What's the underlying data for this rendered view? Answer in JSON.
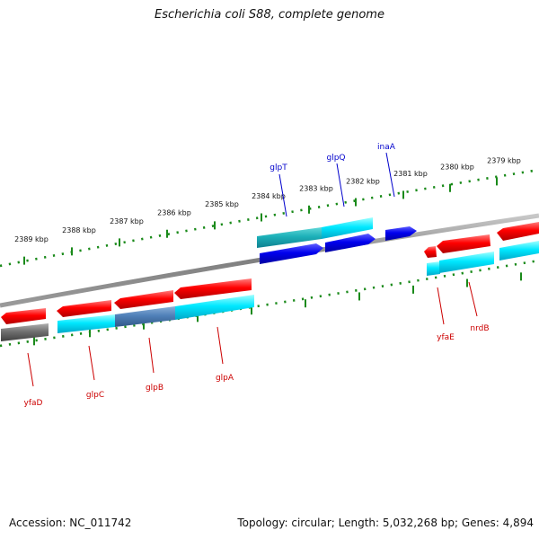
{
  "title": "Escherichia coli S88, complete genome",
  "footer": {
    "accession": "Accession: NC_011742",
    "summary": "Topology: circular; Length: 5,032,268 bp; Genes: 4,894"
  },
  "kbp_labels": [
    "2389 kbp",
    "2388 kbp",
    "2387 kbp",
    "2386 kbp",
    "2385 kbp",
    "2384 kbp",
    "2383 kbp",
    "2382 kbp",
    "2381 kbp",
    "2380 kbp",
    "2379 kbp"
  ],
  "genes_top": [
    "glpT",
    "glpQ",
    "inaA"
  ],
  "genes_bottom": [
    "yfaD",
    "glpC",
    "glpB",
    "glpA",
    "yfaE",
    "nrdB"
  ],
  "colors": {
    "forward": "#ff0000",
    "reverse": "#0000ff",
    "cds": "#00e0ff",
    "pseudo": "#707070",
    "tick": "#1a8a1a",
    "top_label": "#0000cc",
    "bottom_label": "#cc0000"
  }
}
